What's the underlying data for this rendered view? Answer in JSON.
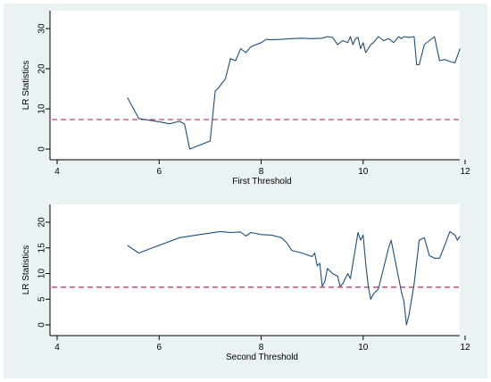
{
  "chart_data": [
    {
      "type": "line",
      "xlabel": "First Threshold",
      "ylabel": "LR Statistics",
      "xlim": [
        4,
        12
      ],
      "ylim": [
        0,
        30
      ],
      "xticks": [
        "4",
        "6",
        "8",
        "10",
        "12"
      ],
      "yticks": [
        "0",
        "10",
        "20",
        "30"
      ],
      "reference_line": 7.35,
      "series": [
        {
          "x": [
            5.38,
            5.6,
            5.75,
            6.0,
            6.2,
            6.4,
            6.5,
            6.6,
            7.0,
            7.1,
            7.15,
            7.3,
            7.4,
            7.5,
            7.6,
            7.7,
            7.8,
            7.9,
            8.0,
            8.1,
            8.2,
            8.4,
            8.6,
            8.8,
            9.0,
            9.2,
            9.3,
            9.4,
            9.5,
            9.6,
            9.7,
            9.75,
            9.8,
            9.85,
            9.9,
            9.95,
            10.0,
            10.05,
            10.1,
            10.15,
            10.2,
            10.3,
            10.4,
            10.5,
            10.6,
            10.7,
            10.75,
            10.8,
            10.9,
            11.0,
            11.05,
            11.1,
            11.2,
            11.3,
            11.4,
            11.5,
            11.6,
            11.7,
            11.8,
            11.9
          ],
          "y": [
            12.8,
            7.6,
            7.3,
            6.8,
            6.3,
            6.9,
            6.2,
            0.0,
            2.0,
            14.5,
            15.0,
            17.5,
            22.5,
            22.0,
            25.0,
            24.0,
            25.5,
            26.0,
            26.5,
            27.3,
            27.2,
            27.3,
            27.5,
            27.6,
            27.5,
            27.6,
            28.0,
            27.8,
            26.0,
            27.0,
            26.5,
            28.0,
            26.0,
            27.5,
            27.8,
            25.0,
            26.5,
            24.0,
            25.0,
            26.0,
            26.5,
            28.0,
            27.0,
            27.5,
            26.5,
            28.0,
            27.5,
            28.0,
            27.8,
            28.0,
            21.0,
            21.0,
            26.0,
            27.0,
            28.0,
            22.0,
            22.3,
            21.8,
            21.5,
            25.0
          ]
        }
      ]
    },
    {
      "type": "line",
      "xlabel": "Second Threshold",
      "ylabel": "LR Statistics",
      "xlim": [
        4,
        12
      ],
      "ylim": [
        0,
        20
      ],
      "xticks": [
        "4",
        "6",
        "8",
        "10",
        "12"
      ],
      "yticks": [
        "0",
        "5",
        "10",
        "15",
        "20"
      ],
      "reference_line": 7.35,
      "series": [
        {
          "x": [
            5.38,
            5.6,
            6.0,
            6.4,
            6.8,
            7.2,
            7.4,
            7.6,
            7.7,
            7.8,
            8.0,
            8.2,
            8.4,
            8.5,
            8.6,
            8.8,
            9.0,
            9.05,
            9.1,
            9.15,
            9.2,
            9.25,
            9.3,
            9.4,
            9.5,
            9.55,
            9.6,
            9.7,
            9.75,
            9.8,
            9.85,
            9.9,
            9.95,
            10.0,
            10.05,
            10.1,
            10.15,
            10.2,
            10.3,
            10.4,
            10.5,
            10.55,
            10.6,
            10.7,
            10.75,
            10.8,
            10.85,
            10.9,
            11.0,
            11.1,
            11.2,
            11.3,
            11.4,
            11.5,
            11.6,
            11.7,
            11.8,
            11.85,
            11.9
          ],
          "y": [
            15.5,
            14.0,
            15.5,
            17.0,
            17.6,
            18.2,
            18.0,
            18.1,
            17.3,
            18.0,
            17.6,
            17.5,
            17.0,
            16.0,
            14.5,
            14.0,
            13.3,
            14.0,
            11.5,
            12.0,
            7.5,
            8.5,
            11.0,
            10.0,
            9.5,
            7.5,
            8.0,
            10.0,
            9.0,
            12.0,
            15.0,
            18.0,
            16.5,
            17.5,
            12.0,
            7.5,
            5.0,
            6.0,
            7.0,
            11.0,
            15.0,
            16.5,
            14.0,
            9.0,
            6.5,
            4.5,
            0.0,
            2.0,
            8.0,
            16.5,
            17.0,
            13.5,
            13.0,
            13.0,
            15.5,
            18.2,
            17.5,
            16.5,
            17.3
          ]
        }
      ]
    }
  ]
}
